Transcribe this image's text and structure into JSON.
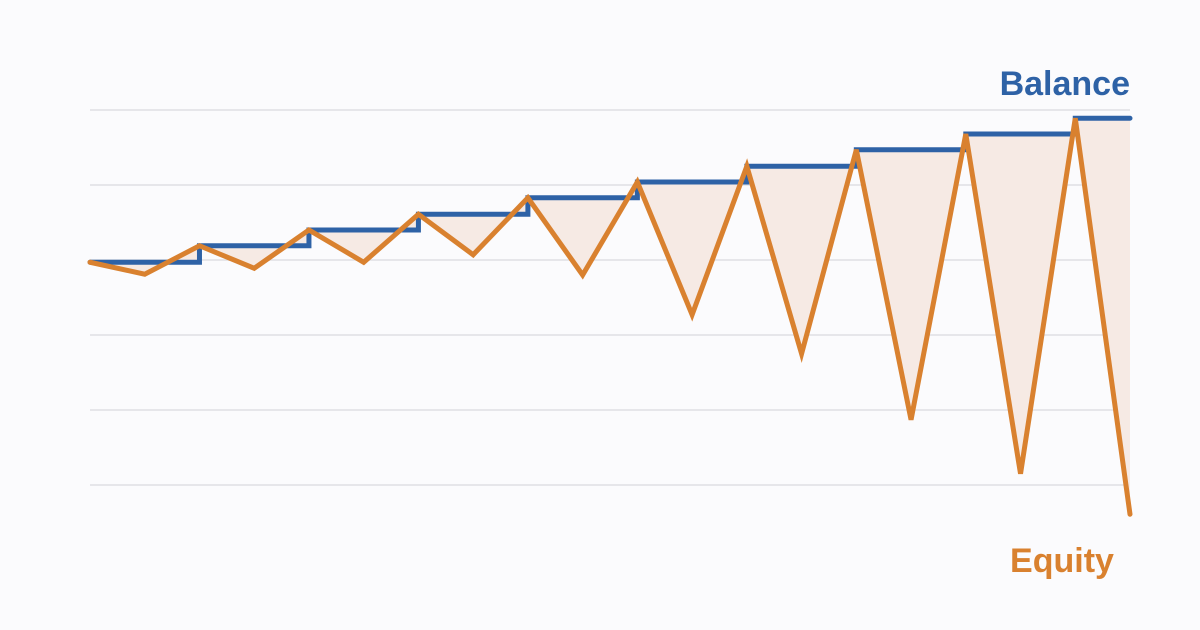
{
  "chart_data": {
    "type": "line",
    "x": [
      0,
      1,
      2,
      3,
      4,
      5,
      6,
      7,
      8,
      9,
      10,
      11,
      12,
      13,
      14,
      15,
      16,
      17,
      18,
      19
    ],
    "xlim": [
      0,
      19
    ],
    "ylim": [
      -1,
      6
    ],
    "gridlines": [
      0,
      1,
      2,
      3,
      4,
      5
    ],
    "grid": true,
    "series": [
      {
        "name": "Balance",
        "color": "#2e62a6",
        "step": true,
        "values": [
          2.97,
          2.97,
          3.19,
          3.19,
          3.4,
          3.4,
          3.61,
          3.61,
          3.83,
          3.83,
          4.04,
          4.04,
          4.25,
          4.25,
          4.47,
          4.47,
          4.68,
          4.68,
          4.89,
          4.89
        ]
      },
      {
        "name": "Equity",
        "color": "#d9812f",
        "step": false,
        "values": [
          2.97,
          2.81,
          3.19,
          2.89,
          3.4,
          2.97,
          3.61,
          3.07,
          3.83,
          2.8,
          4.04,
          2.27,
          4.25,
          1.75,
          4.47,
          0.87,
          4.68,
          0.15,
          4.89,
          -0.39
        ]
      }
    ],
    "fill_between_color": "#f6eae4"
  }
}
